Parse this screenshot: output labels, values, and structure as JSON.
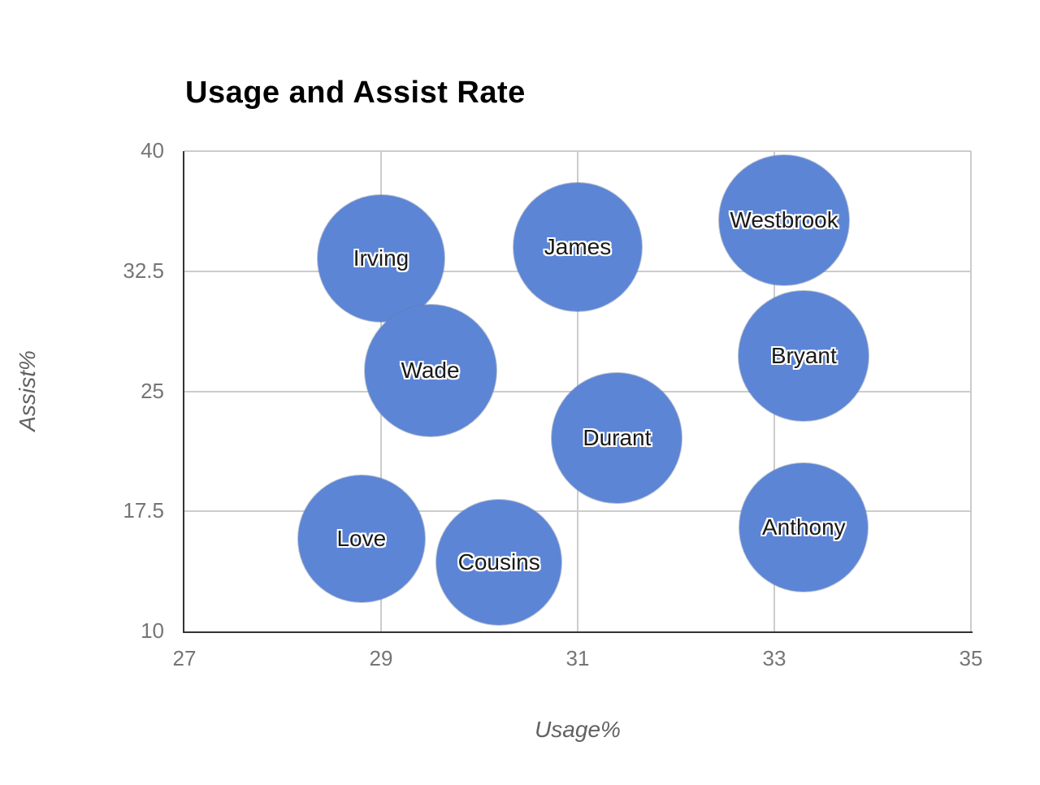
{
  "chart_data": {
    "type": "scatter",
    "variant": "bubble",
    "title": "Usage and Assist Rate",
    "xlabel": "Usage%",
    "ylabel": "Assist%",
    "xlim": [
      27,
      35
    ],
    "ylim": [
      10,
      40
    ],
    "grid": true,
    "legend_position": "none",
    "x_ticks": [
      {
        "value": 27,
        "label": "27"
      },
      {
        "value": 29,
        "label": "29"
      },
      {
        "value": 31,
        "label": "31"
      },
      {
        "value": 33,
        "label": "33"
      },
      {
        "value": 35,
        "label": "35"
      }
    ],
    "y_ticks": [
      {
        "value": 10,
        "label": "10"
      },
      {
        "value": 17.5,
        "label": "17.5"
      },
      {
        "value": 25,
        "label": "25"
      },
      {
        "value": 32.5,
        "label": "32.5"
      },
      {
        "value": 40,
        "label": "40"
      }
    ],
    "series": [
      {
        "name": "Irving",
        "usage": 29.0,
        "assist": 33.3,
        "radius_px": 78
      },
      {
        "name": "James",
        "usage": 31.0,
        "assist": 34.0,
        "radius_px": 79
      },
      {
        "name": "Westbrook",
        "usage": 33.1,
        "assist": 35.7,
        "radius_px": 80
      },
      {
        "name": "Wade",
        "usage": 29.5,
        "assist": 26.3,
        "radius_px": 81
      },
      {
        "name": "Bryant",
        "usage": 33.3,
        "assist": 27.2,
        "radius_px": 80
      },
      {
        "name": "Durant",
        "usage": 31.4,
        "assist": 22.1,
        "radius_px": 80
      },
      {
        "name": "Love",
        "usage": 28.8,
        "assist": 15.8,
        "radius_px": 78
      },
      {
        "name": "Cousins",
        "usage": 30.2,
        "assist": 14.3,
        "radius_px": 77
      },
      {
        "name": "Anthony",
        "usage": 33.3,
        "assist": 16.5,
        "radius_px": 79
      }
    ],
    "colors": {
      "bubble_fill": "#5c85d6",
      "bubble_label": "#1a1a1a",
      "bubble_label_halo": "#ffffff",
      "gridline": "#cccccc",
      "axis_line": "#333333",
      "tick_label": "#757575",
      "axis_title": "#616161",
      "title": "#000000",
      "background": "#ffffff"
    }
  }
}
